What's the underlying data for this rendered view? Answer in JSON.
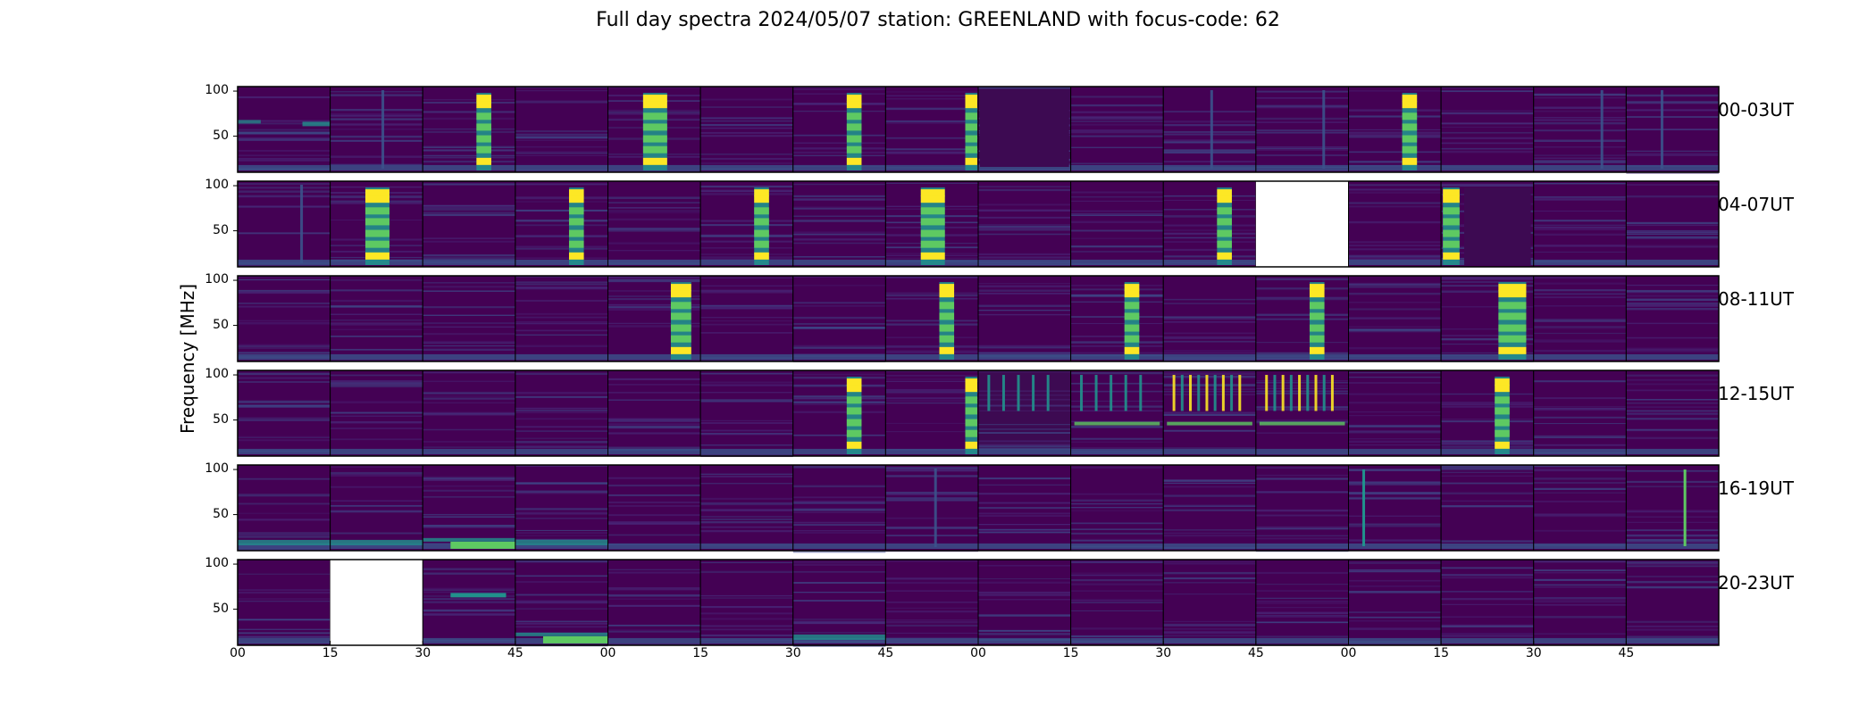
{
  "title": "Full day spectra 2024/05/07 station: GREENLAND with focus-code: 62",
  "chart_data": {
    "type": "heatmap",
    "title": "Full day spectra 2024/05/07 station: GREENLAND with focus-code: 62",
    "ylabel": "Frequency [MHz]",
    "xlabel": "",
    "ylim": [
      10,
      105
    ],
    "yticks": [
      50,
      100
    ],
    "xticks": [
      "00",
      "15",
      "30",
      "45",
      "00",
      "15",
      "30",
      "45",
      "00",
      "15",
      "30",
      "45",
      "00",
      "15",
      "30",
      "45"
    ],
    "colormap": "viridis",
    "rows": [
      {
        "label": "00-03UT",
        "panels": [
          "rfi-left",
          "quiet-vline",
          "burst",
          "quiet",
          "burst-strong",
          "quiet",
          "burst",
          "burst-edge",
          "dark",
          "quiet",
          "quiet-vline",
          "quiet-vline",
          "burst",
          "quiet",
          "quiet-vline",
          "quiet-vline"
        ]
      },
      {
        "label": "04-07UT",
        "panels": [
          "quiet-vline",
          "burst-strong",
          "quiet",
          "burst",
          "quiet",
          "burst",
          "quiet",
          "burst-strong",
          "quiet",
          "quiet",
          "burst",
          "missing",
          "quiet",
          "burst-dark",
          "quiet",
          "quiet"
        ]
      },
      {
        "label": "08-11UT",
        "panels": [
          "quiet",
          "quiet",
          "quiet",
          "quiet",
          "burst-right",
          "quiet",
          "quiet",
          "burst",
          "quiet",
          "burst",
          "quiet",
          "burst",
          "quiet",
          "burst-wide",
          "quiet",
          "quiet"
        ]
      },
      {
        "label": "12-15UT",
        "panels": [
          "quiet",
          "quiet",
          "quiet",
          "quiet",
          "quiet",
          "quiet",
          "burst",
          "burst-edge",
          "dark-lines",
          "lines",
          "lines-strong",
          "lines-strong",
          "quiet",
          "burst",
          "quiet",
          "quiet"
        ]
      },
      {
        "label": "16-19UT",
        "panels": [
          "low-band",
          "low-band",
          "low-green",
          "low-band",
          "quiet",
          "quiet",
          "quiet",
          "quiet-vline",
          "quiet",
          "quiet",
          "quiet",
          "quiet",
          "spike",
          "quiet",
          "quiet",
          "spike-strong"
        ]
      },
      {
        "label": "20-23UT",
        "panels": [
          "quiet",
          "missing",
          "quiet-band",
          "low-green",
          "quiet",
          "quiet",
          "low-band",
          "quiet",
          "quiet",
          "quiet",
          "quiet",
          "quiet",
          "quiet",
          "quiet",
          "quiet",
          "quiet"
        ]
      }
    ],
    "colors": {
      "background": "#440154",
      "mid": "#3b528b",
      "teal": "#21918c",
      "green": "#5ec962",
      "yellow": "#fde725"
    }
  }
}
